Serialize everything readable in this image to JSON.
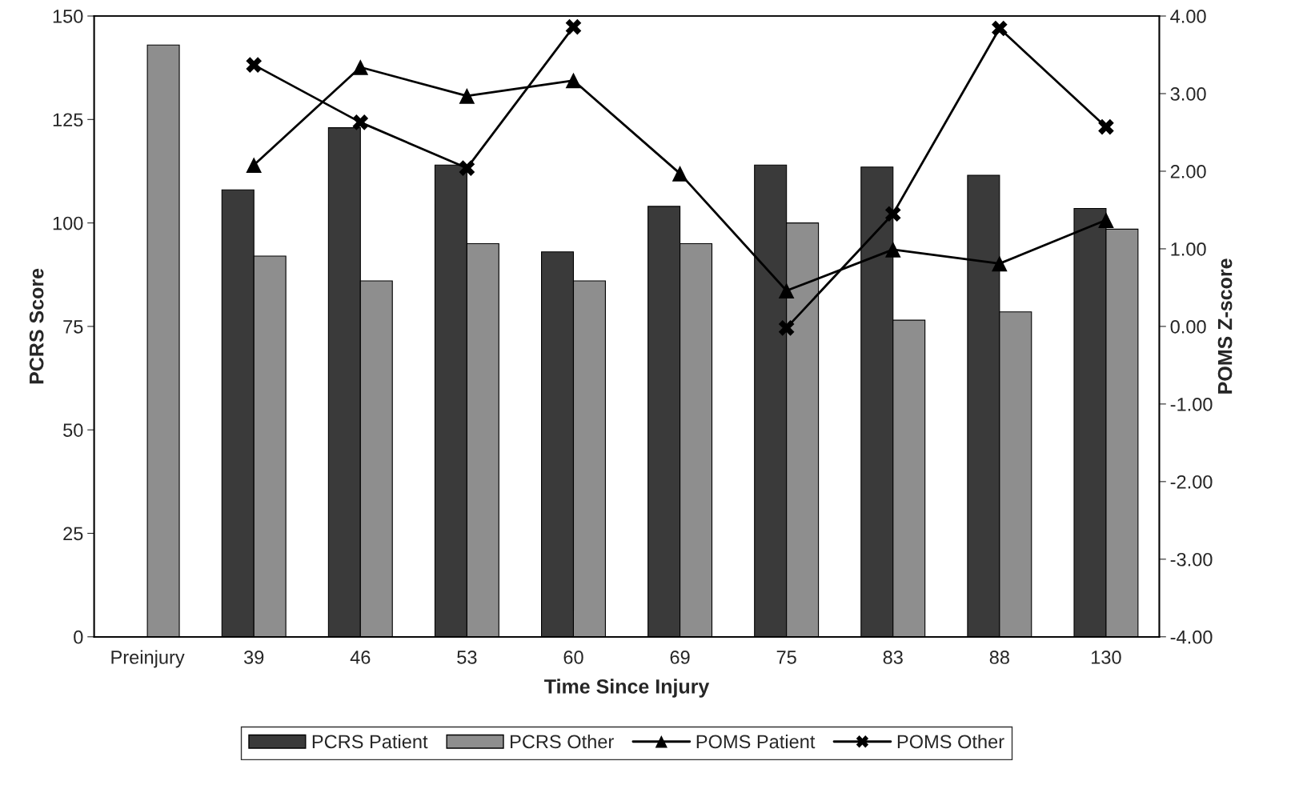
{
  "chart_data": {
    "type": "bar",
    "xlabel": "Time Since Injury",
    "ylabel": "PCRS Score",
    "y2label": "POMS Z-score",
    "categories": [
      "Preinjury",
      "39",
      "46",
      "53",
      "60",
      "69",
      "75",
      "83",
      "88",
      "130"
    ],
    "series": [
      {
        "name": "PCRS Patient",
        "color": "#3a3a3a",
        "values": [
          null,
          108,
          123,
          114,
          93,
          104,
          114,
          113.5,
          111.5,
          103.5
        ]
      },
      {
        "name": "PCRS Other",
        "color": "#8e8e8e",
        "values": [
          143,
          92,
          86,
          95,
          86,
          95,
          100,
          76.5,
          78.5,
          98.5
        ]
      },
      {
        "name": "POMS Patient",
        "type": "line",
        "axis": "y2",
        "color": "#000000",
        "marker": "triangle",
        "values": [
          null,
          2.08,
          3.34,
          2.97,
          3.17,
          1.97,
          0.46,
          0.99,
          0.81,
          1.37
        ]
      },
      {
        "name": "POMS Other",
        "type": "line",
        "axis": "y2",
        "color": "#000000",
        "marker": "cross",
        "values": [
          null,
          3.37,
          2.63,
          2.04,
          3.86,
          null,
          -0.02,
          1.45,
          3.84,
          2.57
        ]
      }
    ],
    "ylim": [
      0,
      150
    ],
    "yticks": [
      0,
      25,
      50,
      75,
      100,
      125,
      150
    ],
    "y2lim": [
      -4,
      4
    ],
    "y2ticks": [
      {
        "value": -4,
        "label": "-4.00"
      },
      {
        "value": -3,
        "label": "-3.00"
      },
      {
        "value": -2,
        "label": "-2.00"
      },
      {
        "value": -1,
        "label": "-1.00"
      },
      {
        "value": 0,
        "label": "0.00"
      },
      {
        "value": 1,
        "label": "1.00"
      },
      {
        "value": 2,
        "label": "2.00"
      },
      {
        "value": 3,
        "label": "3.00"
      },
      {
        "value": 4,
        "label": "4.00"
      }
    ],
    "grid": false,
    "legend": "bottom"
  }
}
